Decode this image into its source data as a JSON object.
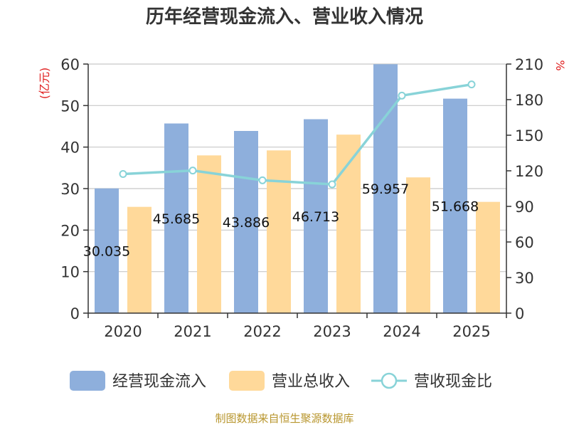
{
  "chart_data": {
    "type": "bar",
    "title": "历年经营现金流入、营业收入情况",
    "categories": [
      "2020",
      "2021",
      "2022",
      "2023",
      "2024",
      "2025"
    ],
    "y_left": {
      "unit": "(亿元)",
      "ylim": [
        0,
        60
      ],
      "ticks": [
        "0",
        "10",
        "20",
        "30",
        "40",
        "50",
        "60"
      ]
    },
    "y_right": {
      "unit": "%",
      "ylim": [
        0,
        210
      ],
      "ticks": [
        "0",
        "30",
        "60",
        "90",
        "120",
        "150",
        "180",
        "210"
      ]
    },
    "series": [
      {
        "name": "经营现金流入",
        "type": "bar",
        "axis": "left",
        "color": "#8eafdc",
        "values": [
          30.035,
          45.685,
          43.886,
          46.713,
          59.957,
          51.668
        ],
        "labels": [
          "30.035",
          "45.685",
          "43.886",
          "46.713",
          "59.957",
          "51.668"
        ]
      },
      {
        "name": "营业总收入",
        "type": "bar",
        "axis": "left",
        "color": "#ffd99a",
        "values": [
          25.6,
          38.0,
          39.2,
          43.0,
          32.7,
          26.8
        ]
      },
      {
        "name": "营收现金比",
        "type": "line",
        "axis": "right",
        "color": "#88d3d8",
        "values": [
          117.3,
          120.2,
          112.0,
          108.6,
          183.4,
          192.8
        ]
      }
    ],
    "grid": true,
    "legend_position": "bottom"
  },
  "footer": {
    "source": "制图数据来自恒生聚源数据库"
  }
}
